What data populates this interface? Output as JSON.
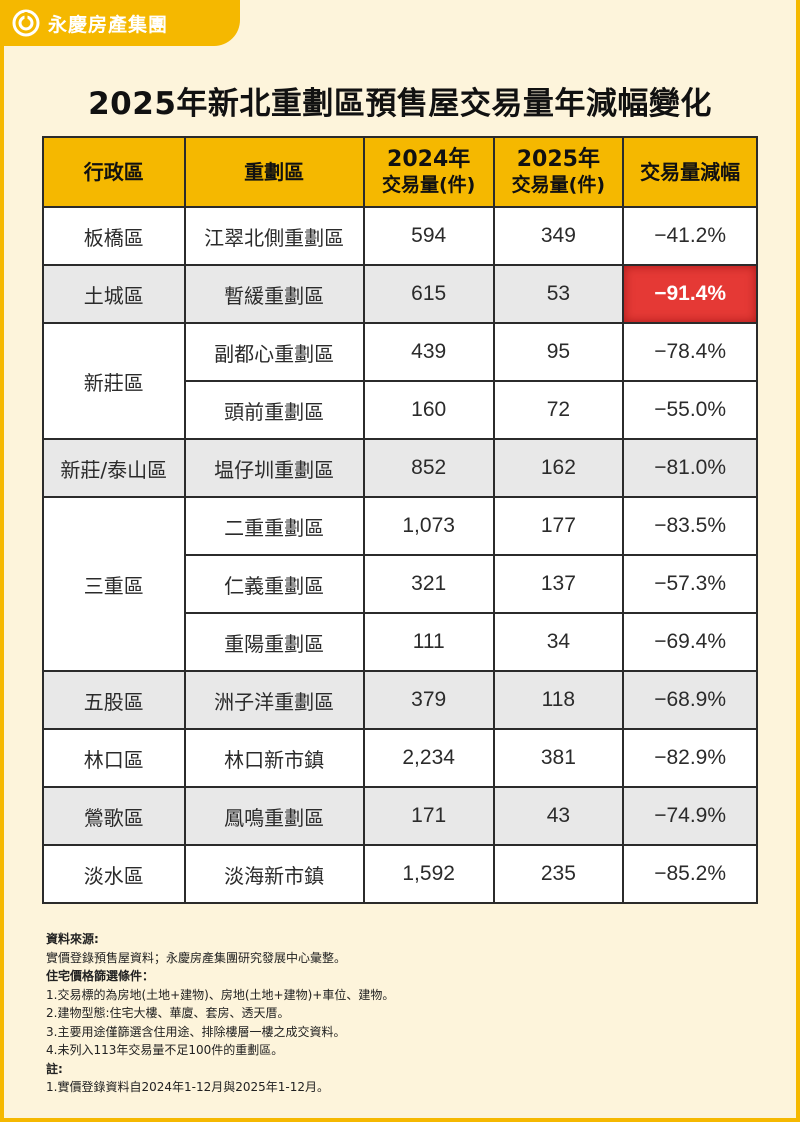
{
  "brand": {
    "name": "永慶房產集團",
    "color": "#f5b800"
  },
  "title": "2025年新北重劃區預售屋交易量年減幅變化",
  "table": {
    "headers": {
      "district": "行政區",
      "zone": "重劃區",
      "y2024_line1": "2024年",
      "y2024_line2": "交易量(件)",
      "y2025_line1": "2025年",
      "y2025_line2": "交易量(件)",
      "change": "交易量減幅"
    },
    "districts": [
      "板橋區",
      "土城區",
      "新莊區",
      "新莊/泰山區",
      "三重區",
      "五股區",
      "林口區",
      "鶯歌區",
      "淡水區"
    ],
    "rows": [
      {
        "zone": "江翠北側重劃區",
        "v2024": "594",
        "v2025": "349",
        "change": "−41.2%"
      },
      {
        "zone": "暫緩重劃區",
        "v2024": "615",
        "v2025": "53",
        "change": "−91.4%"
      },
      {
        "zone": "副都心重劃區",
        "v2024": "439",
        "v2025": "95",
        "change": "−78.4%"
      },
      {
        "zone": "頭前重劃區",
        "v2024": "160",
        "v2025": "72",
        "change": "−55.0%"
      },
      {
        "zone": "塭仔圳重劃區",
        "v2024": "852",
        "v2025": "162",
        "change": "−81.0%"
      },
      {
        "zone": "二重重劃區",
        "v2024": "1,073",
        "v2025": "177",
        "change": "−83.5%"
      },
      {
        "zone": "仁義重劃區",
        "v2024": "321",
        "v2025": "137",
        "change": "−57.3%"
      },
      {
        "zone": "重陽重劃區",
        "v2024": "111",
        "v2025": "34",
        "change": "−69.4%"
      },
      {
        "zone": "洲子洋重劃區",
        "v2024": "379",
        "v2025": "118",
        "change": "−68.9%"
      },
      {
        "zone": "林口新市鎮",
        "v2024": "2,234",
        "v2025": "381",
        "change": "−82.9%"
      },
      {
        "zone": "鳳鳴重劃區",
        "v2024": "171",
        "v2025": "43",
        "change": "−74.9%"
      },
      {
        "zone": "淡海新市鎮",
        "v2024": "1,592",
        "v2025": "235",
        "change": "−85.2%"
      }
    ],
    "highlight_color": "#e53935"
  },
  "notes": {
    "source_heading": "資料來源:",
    "source_text": "實價登錄預售屋資料；永慶房產集團研究發展中心彙整。",
    "criteria_heading": "住宅價格篩選條件：",
    "criteria": [
      "1.交易標的為房地(土地+建物)、房地(土地+建物)+車位、建物。",
      "2.建物型態:住宅大樓、華廈、套房、透天厝。",
      "3.主要用途僅篩選含住用途、排除樓層一樓之成交資料。",
      "4.未列入113年交易量不足100件的重劃區。"
    ],
    "note_heading": "註:",
    "note_text": "1.實價登錄資料自2024年1-12月與2025年1-12月。"
  }
}
